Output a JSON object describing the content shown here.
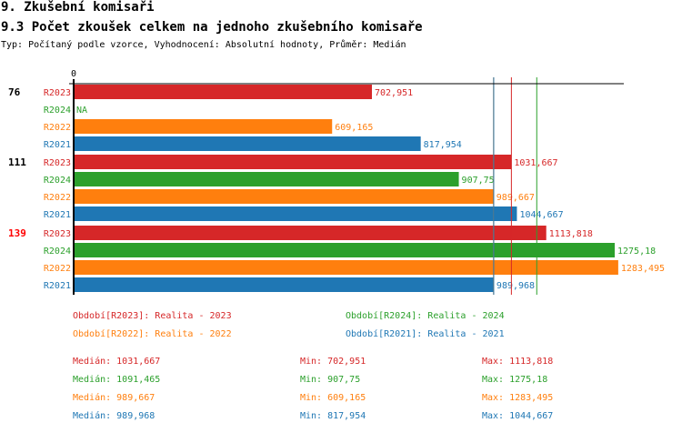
{
  "header": {
    "section": "9. Zkušební komisaři",
    "title": "9.3 Počet zkoušek celkem na jednoho zkušebního komisaře",
    "subtitle": "Typ: Počítaný podle vzorce, Vyhodnocení: Absolutní hodnoty, Průměr: Medián"
  },
  "chart_data": {
    "type": "bar",
    "orientation": "horizontal",
    "axis_zero_label": "0",
    "xlim": [
      0,
      1300
    ],
    "groups": [
      {
        "label": "76",
        "highlight": false
      },
      {
        "label": "111",
        "highlight": false
      },
      {
        "label": "139",
        "highlight": true
      }
    ],
    "series": [
      {
        "name": "R2023",
        "color": "#d62728",
        "values": [
          702.951,
          1031.667,
          1113.818
        ],
        "labels": [
          "702,951",
          "1031,667",
          "1113,818"
        ],
        "median": 1031.667
      },
      {
        "name": "R2024",
        "color": "#2ca02c",
        "values": [
          null,
          907.75,
          1275.18
        ],
        "labels": [
          "NA",
          "907,75",
          "1275,18"
        ],
        "median": 1091.465
      },
      {
        "name": "R2022",
        "color": "#ff7f0e",
        "values": [
          609.165,
          989.667,
          1283.495
        ],
        "labels": [
          "609,165",
          "989,667",
          "1283,495"
        ],
        "median": 989.667
      },
      {
        "name": "R2021",
        "color": "#1f77b4",
        "values": [
          817.954,
          1044.667,
          989.968
        ],
        "labels": [
          "817,954",
          "1044,667",
          "989,968"
        ],
        "median": 989.968
      }
    ],
    "legend": [
      {
        "text": "Období[R2023]: Realita - 2023",
        "color": "#d62728"
      },
      {
        "text": "Období[R2024]: Realita - 2024",
        "color": "#2ca02c"
      },
      {
        "text": "Období[R2022]: Realita - 2022",
        "color": "#ff7f0e"
      },
      {
        "text": "Období[R2021]: Realita - 2021",
        "color": "#1f77b4"
      }
    ],
    "stats": [
      {
        "median": "Medián: 1031,667",
        "min": "Min: 702,951",
        "max": "Max: 1113,818",
        "color": "#d62728"
      },
      {
        "median": "Medián: 1091,465",
        "min": "Min: 907,75",
        "max": "Max: 1275,18",
        "color": "#2ca02c"
      },
      {
        "median": "Medián: 989,667",
        "min": "Min: 609,165",
        "max": "Max: 1283,495",
        "color": "#ff7f0e"
      },
      {
        "median": "Medián: 989,968",
        "min": "Min: 817,954",
        "max": "Max: 1044,667",
        "color": "#1f77b4"
      }
    ]
  }
}
